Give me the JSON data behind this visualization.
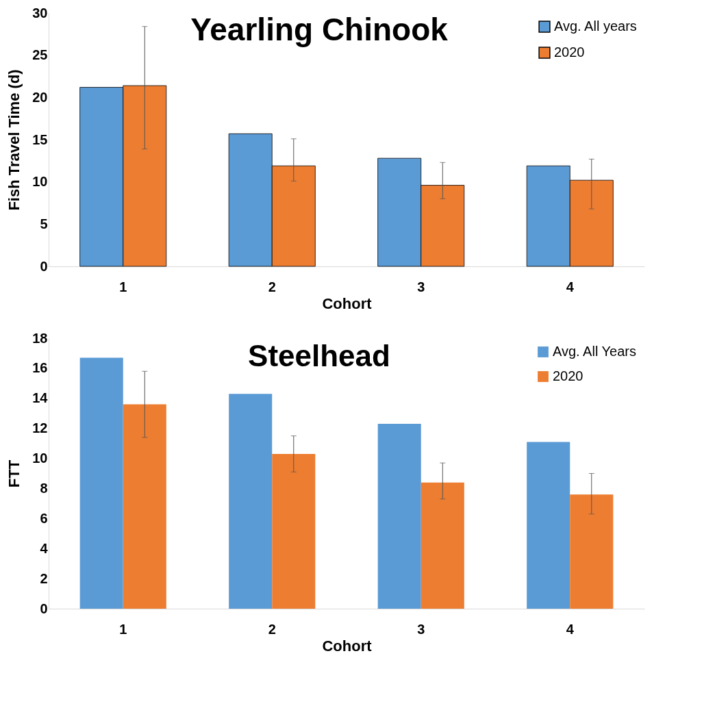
{
  "chart_data": [
    {
      "type": "bar",
      "title": "Yearling Chinook",
      "xlabel": "Cohort",
      "ylabel": "Fish Travel Time (d)",
      "categories": [
        "1",
        "2",
        "3",
        "4"
      ],
      "series": [
        {
          "name": "Avg. All years",
          "color": "#5b9bd5",
          "values": [
            21.2,
            15.7,
            12.8,
            11.9
          ]
        },
        {
          "name": "2020",
          "color": "#ed7d31",
          "values": [
            21.4,
            11.9,
            9.6,
            10.2
          ],
          "errors": [
            [
              13.9,
              28.4
            ],
            [
              10.1,
              15.1
            ],
            [
              8.0,
              12.3
            ],
            [
              6.8,
              12.7
            ]
          ]
        }
      ],
      "ylim": [
        0,
        30
      ],
      "yticks": [
        0,
        5,
        10,
        15,
        20,
        25,
        30
      ],
      "grid": false,
      "legend": "top right"
    },
    {
      "type": "bar",
      "title": "Steelhead",
      "xlabel": "Cohort",
      "ylabel": "FTT",
      "categories": [
        "1",
        "2",
        "3",
        "4"
      ],
      "series": [
        {
          "name": "Avg. All Years",
          "color": "#5b9bd5",
          "values": [
            16.7,
            14.3,
            12.3,
            11.1
          ]
        },
        {
          "name": "2020",
          "color": "#ed7d31",
          "values": [
            13.6,
            10.3,
            8.4,
            7.6
          ],
          "errors": [
            [
              11.4,
              15.8
            ],
            [
              9.1,
              11.5
            ],
            [
              7.3,
              9.7
            ],
            [
              6.3,
              9.0
            ]
          ]
        }
      ],
      "ylim": [
        0,
        18
      ],
      "yticks": [
        0,
        2,
        4,
        6,
        8,
        10,
        12,
        14,
        16,
        18
      ],
      "grid": false,
      "legend": "top right"
    }
  ]
}
